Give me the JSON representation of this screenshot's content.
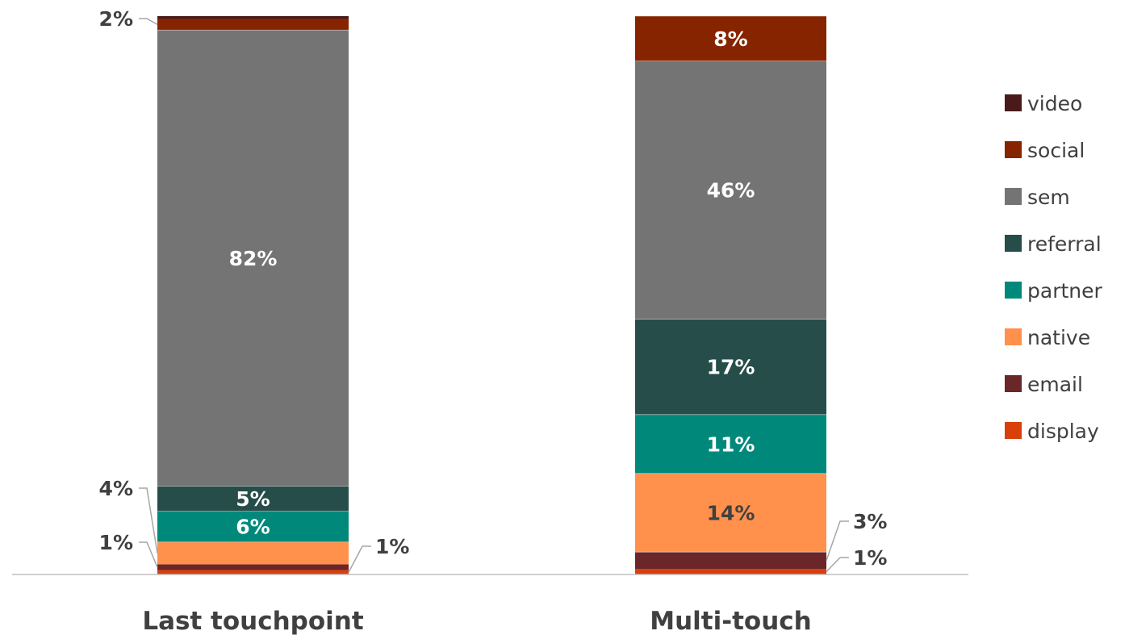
{
  "chart_data": {
    "type": "bar",
    "stacked": true,
    "normalized": true,
    "categories": [
      "Last touchpoint",
      "Multi-touch"
    ],
    "series": [
      {
        "name": "display",
        "color": "#d93f0b",
        "values": [
          0.8,
          1
        ],
        "labels": [
          "",
          "1%"
        ]
      },
      {
        "name": "email",
        "color": "#6b262a",
        "values": [
          1,
          3
        ],
        "labels": [
          "1%",
          "3%"
        ]
      },
      {
        "name": "native",
        "color": "#ff914d",
        "values": [
          4,
          14
        ],
        "labels": [
          "4%",
          "14%"
        ]
      },
      {
        "name": "partner",
        "color": "#00897b",
        "values": [
          5.5,
          10.5
        ],
        "labels": [
          "6%",
          "11%"
        ]
      },
      {
        "name": "referral",
        "color": "#264d4a",
        "values": [
          4.5,
          17
        ],
        "labels": [
          "5%",
          "17%"
        ]
      },
      {
        "name": "sem",
        "color": "#747474",
        "values": [
          81.5,
          46
        ],
        "labels": [
          "82%",
          "46%"
        ]
      },
      {
        "name": "social",
        "color": "#862400",
        "values": [
          2,
          8
        ],
        "labels": [
          "2%",
          "8%"
        ]
      },
      {
        "name": "video",
        "color": "#4a1a1a",
        "values": [
          0.5,
          0
        ],
        "labels": [
          "",
          ""
        ]
      }
    ],
    "outside_labels": [
      {
        "category": 0,
        "series": "social",
        "text": "2%",
        "side": "left"
      },
      {
        "category": 0,
        "series": "native",
        "text": "4%",
        "side": "left"
      },
      {
        "category": 0,
        "series": "email",
        "text": "1%",
        "side": "left"
      },
      {
        "category": 0,
        "series": "display",
        "text": "1%",
        "side": "right"
      },
      {
        "category": 1,
        "series": "email",
        "text": "3%",
        "side": "right"
      },
      {
        "category": 1,
        "series": "display",
        "text": "1%",
        "side": "right"
      }
    ],
    "legend": {
      "position": "right",
      "order": [
        "video",
        "social",
        "sem",
        "referral",
        "partner",
        "native",
        "email",
        "display"
      ]
    },
    "ylim": [
      0,
      100
    ],
    "grid": false
  }
}
